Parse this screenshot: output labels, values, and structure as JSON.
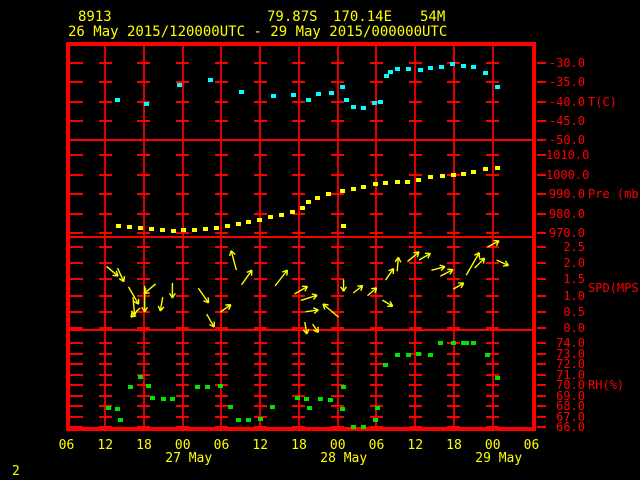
{
  "header": {
    "station_id": "8913",
    "latitude": "79.87S",
    "longitude": "170.14E",
    "elevation": "54M",
    "time_range": "26 May 2015/120000UTC - 29 May 2015/000000UTC"
  },
  "page_number": "2",
  "colors": {
    "background": "#000000",
    "grid": "#ff0000",
    "axis_text": "#ff0000",
    "time_text": "#ffff00",
    "temperature": "#00ffff",
    "pressure": "#ffff00",
    "wind": "#ffff00",
    "humidity": "#00e400"
  },
  "x_axis": {
    "hours_total": 72,
    "hour_labels": [
      "06",
      "12",
      "18",
      "00",
      "06",
      "12",
      "18",
      "00",
      "06",
      "12",
      "18",
      "00",
      "06"
    ],
    "date_labels": [
      {
        "text": "27 May",
        "hour": 18
      },
      {
        "text": "28 May",
        "hour": 42
      },
      {
        "text": "29 May",
        "hour": 66
      }
    ]
  },
  "chart_data": [
    {
      "type": "scatter",
      "name": "temperature",
      "unit_label": "T(C)",
      "color": "#00ffff",
      "ylim": [
        -52.5,
        -27.5
      ],
      "yticks": [
        {
          "v": -30,
          "label": "-30.0"
        },
        {
          "v": -35,
          "label": "-35.0"
        },
        {
          "v": -40,
          "label": "-40.0"
        },
        {
          "v": -45,
          "label": "-45.0"
        },
        {
          "v": -50,
          "label": "-50.0"
        }
      ],
      "points": [
        [
          7.9,
          -39.6
        ],
        [
          12.4,
          -40.7
        ],
        [
          17.5,
          -35.7
        ],
        [
          22.3,
          -34.4
        ],
        [
          27.1,
          -37.6
        ],
        [
          32.1,
          -38.6
        ],
        [
          35.2,
          -38.3
        ],
        [
          37.5,
          -39.6
        ],
        [
          39.0,
          -38.1
        ],
        [
          41.0,
          -37.8
        ],
        [
          42.7,
          -36.3
        ],
        [
          43.4,
          -39.6
        ],
        [
          44.4,
          -41.5
        ],
        [
          46.0,
          -41.7
        ],
        [
          47.7,
          -40.4
        ],
        [
          48.6,
          -40.2
        ],
        [
          49.6,
          -33.4
        ],
        [
          50.1,
          -32.3
        ],
        [
          51.2,
          -31.6
        ],
        [
          53.0,
          -31.6
        ],
        [
          54.8,
          -31.8
        ],
        [
          56.4,
          -31.3
        ],
        [
          58.1,
          -31.0
        ],
        [
          59.8,
          -30.3
        ],
        [
          61.5,
          -30.8
        ],
        [
          63.0,
          -31.1
        ],
        [
          64.9,
          -32.6
        ],
        [
          66.7,
          -36.3
        ]
      ]
    },
    {
      "type": "scatter",
      "name": "pressure",
      "unit_label": "Pre (mb)",
      "color": "#ffff00",
      "ylim": [
        968,
        1012
      ],
      "yticks": [
        {
          "v": 1010,
          "label": "1010.0"
        },
        {
          "v": 1000,
          "label": "1000.0"
        },
        {
          "v": 990,
          "label": "990.0"
        },
        {
          "v": 980,
          "label": "980.0"
        },
        {
          "v": 970,
          "label": "970.0"
        }
      ],
      "points": [
        [
          8.1,
          973.5
        ],
        [
          9.8,
          973.1
        ],
        [
          11.5,
          972.6
        ],
        [
          13.2,
          972.1
        ],
        [
          14.9,
          971.5
        ],
        [
          16.6,
          971.0
        ],
        [
          18.1,
          971.3
        ],
        [
          19.8,
          971.5
        ],
        [
          21.5,
          972.1
        ],
        [
          23.2,
          972.6
        ],
        [
          24.9,
          973.6
        ],
        [
          26.6,
          974.6
        ],
        [
          28.2,
          975.6
        ],
        [
          29.9,
          976.7
        ],
        [
          31.6,
          978.2
        ],
        [
          33.3,
          979.2
        ],
        [
          35.0,
          980.8
        ],
        [
          36.5,
          983.0
        ],
        [
          37.5,
          985.8
        ],
        [
          38.9,
          988.0
        ],
        [
          40.6,
          989.8
        ],
        [
          42.7,
          991.6
        ],
        [
          44.4,
          992.8
        ],
        [
          46.0,
          993.8
        ],
        [
          47.8,
          994.9
        ],
        [
          49.4,
          995.4
        ],
        [
          51.2,
          995.9
        ],
        [
          52.8,
          996.4
        ],
        [
          54.5,
          997.4
        ],
        [
          56.4,
          998.5
        ],
        [
          58.2,
          999.0
        ],
        [
          59.9,
          999.5
        ],
        [
          61.5,
          1000.5
        ],
        [
          63.0,
          1001.5
        ],
        [
          64.9,
          1002.6
        ],
        [
          66.7,
          1003.1
        ],
        [
          42.9,
          973.5
        ]
      ]
    },
    {
      "type": "wind_vectors",
      "name": "wind_speed",
      "unit_label": "SPD(MPS)",
      "color": "#ffff00",
      "ylim": [
        0,
        2.9
      ],
      "yticks": [
        {
          "v": 2.5,
          "label": "2.5"
        },
        {
          "v": 2.0,
          "label": "2.0"
        },
        {
          "v": 1.5,
          "label": "1.5"
        },
        {
          "v": 1.0,
          "label": "1.0"
        },
        {
          "v": 0.5,
          "label": "0.5"
        },
        {
          "v": 0.0,
          "label": "0.0"
        }
      ],
      "arrows": [
        {
          "h": 6.2,
          "spd": 1.9,
          "dir": -40,
          "len": 15
        },
        {
          "h": 7.9,
          "spd": 1.85,
          "dir": -65,
          "len": 15
        },
        {
          "h": 9.6,
          "spd": 1.27,
          "dir": -60,
          "len": 20
        },
        {
          "h": 10.3,
          "spd": 0.95,
          "dir": -85,
          "len": 18
        },
        {
          "h": 11.4,
          "spd": 0.62,
          "dir": -135,
          "len": 13
        },
        {
          "h": 12.1,
          "spd": 1.3,
          "dir": -90,
          "len": 26
        },
        {
          "h": 13.8,
          "spd": 1.36,
          "dir": -140,
          "len": 15
        },
        {
          "h": 14.9,
          "spd": 0.95,
          "dir": -100,
          "len": 14
        },
        {
          "h": 16.4,
          "spd": 1.39,
          "dir": -90,
          "len": 15
        },
        {
          "h": 20.4,
          "spd": 1.23,
          "dir": -55,
          "len": 18
        },
        {
          "h": 21.7,
          "spd": 0.43,
          "dir": -60,
          "len": 15
        },
        {
          "h": 23.8,
          "spd": 0.49,
          "dir": 35,
          "len": 13
        },
        {
          "h": 26.3,
          "spd": 1.79,
          "dir": 105,
          "len": 20
        },
        {
          "h": 27.1,
          "spd": 1.33,
          "dir": 55,
          "len": 18
        },
        {
          "h": 32.3,
          "spd": 1.3,
          "dir": 52,
          "len": 20
        },
        {
          "h": 35.3,
          "spd": 1.05,
          "dir": 30,
          "len": 15
        },
        {
          "h": 36.3,
          "spd": 0.85,
          "dir": 18,
          "len": 17
        },
        {
          "h": 37.0,
          "spd": 0.5,
          "dir": 8,
          "len": 13
        },
        {
          "h": 36.9,
          "spd": 0.18,
          "dir": -80,
          "len": 12
        },
        {
          "h": 38.1,
          "spd": 0.12,
          "dir": -55,
          "len": 10
        },
        {
          "h": 42.1,
          "spd": 0.34,
          "dir": 140,
          "len": 20
        },
        {
          "h": 42.9,
          "spd": 1.5,
          "dir": -90,
          "len": 12
        },
        {
          "h": 44.4,
          "spd": 1.08,
          "dir": 38,
          "len": 12
        },
        {
          "h": 46.6,
          "spd": 1.0,
          "dir": 40,
          "len": 12
        },
        {
          "h": 48.9,
          "spd": 0.86,
          "dir": -30,
          "len": 12
        },
        {
          "h": 49.4,
          "spd": 1.48,
          "dir": 55,
          "len": 14
        },
        {
          "h": 51.2,
          "spd": 1.75,
          "dir": 85,
          "len": 14
        },
        {
          "h": 52.8,
          "spd": 2.05,
          "dir": 40,
          "len": 15
        },
        {
          "h": 54.6,
          "spd": 2.1,
          "dir": 30,
          "len": 13
        },
        {
          "h": 56.5,
          "spd": 1.78,
          "dir": 15,
          "len": 14
        },
        {
          "h": 57.9,
          "spd": 1.6,
          "dir": 28,
          "len": 14
        },
        {
          "h": 59.9,
          "spd": 1.2,
          "dir": 30,
          "len": 12
        },
        {
          "h": 61.9,
          "spd": 1.63,
          "dir": 60,
          "len": 26
        },
        {
          "h": 63.2,
          "spd": 1.85,
          "dir": 45,
          "len": 14
        },
        {
          "h": 65.2,
          "spd": 2.5,
          "dir": 28,
          "len": 13
        },
        {
          "h": 66.6,
          "spd": 2.1,
          "dir": -25,
          "len": 13
        }
      ]
    },
    {
      "type": "scatter",
      "name": "relative_humidity",
      "unit_label": "RH(%)",
      "color": "#00e400",
      "ylim": [
        65.5,
        75.2
      ],
      "yticks": [
        {
          "v": 74,
          "label": "74.0"
        },
        {
          "v": 73,
          "label": "73.0"
        },
        {
          "v": 72,
          "label": "72.0"
        },
        {
          "v": 71,
          "label": "71.0"
        },
        {
          "v": 70,
          "label": "70.0"
        },
        {
          "v": 69,
          "label": "69.0"
        },
        {
          "v": 68,
          "label": "68.0"
        },
        {
          "v": 67,
          "label": "67.0"
        },
        {
          "v": 66,
          "label": "66.0"
        }
      ],
      "points": [
        [
          6.5,
          67.8
        ],
        [
          7.9,
          67.7
        ],
        [
          8.4,
          66.7
        ],
        [
          9.9,
          69.8
        ],
        [
          11.5,
          70.8
        ],
        [
          12.7,
          69.9
        ],
        [
          13.3,
          68.8
        ],
        [
          15.0,
          68.7
        ],
        [
          16.4,
          68.7
        ],
        [
          20.3,
          69.8
        ],
        [
          21.8,
          69.8
        ],
        [
          23.8,
          69.9
        ],
        [
          25.4,
          67.9
        ],
        [
          26.6,
          66.7
        ],
        [
          28.2,
          66.7
        ],
        [
          30.0,
          66.8
        ],
        [
          31.9,
          67.9
        ],
        [
          35.8,
          68.8
        ],
        [
          37.2,
          68.7
        ],
        [
          37.6,
          67.8
        ],
        [
          39.3,
          68.7
        ],
        [
          40.9,
          68.6
        ],
        [
          42.7,
          67.7
        ],
        [
          42.9,
          69.8
        ],
        [
          44.4,
          66.0
        ],
        [
          46.0,
          66.0
        ],
        [
          47.8,
          66.7
        ],
        [
          48.2,
          67.8
        ],
        [
          49.4,
          71.9
        ],
        [
          51.2,
          72.9
        ],
        [
          52.9,
          72.9
        ],
        [
          54.5,
          73.0
        ],
        [
          56.3,
          72.9
        ],
        [
          57.9,
          74.0
        ],
        [
          59.9,
          74.0
        ],
        [
          61.5,
          74.0
        ],
        [
          61.9,
          74.0
        ],
        [
          63.0,
          74.0
        ],
        [
          65.2,
          72.9
        ],
        [
          66.7,
          70.7
        ]
      ]
    }
  ]
}
